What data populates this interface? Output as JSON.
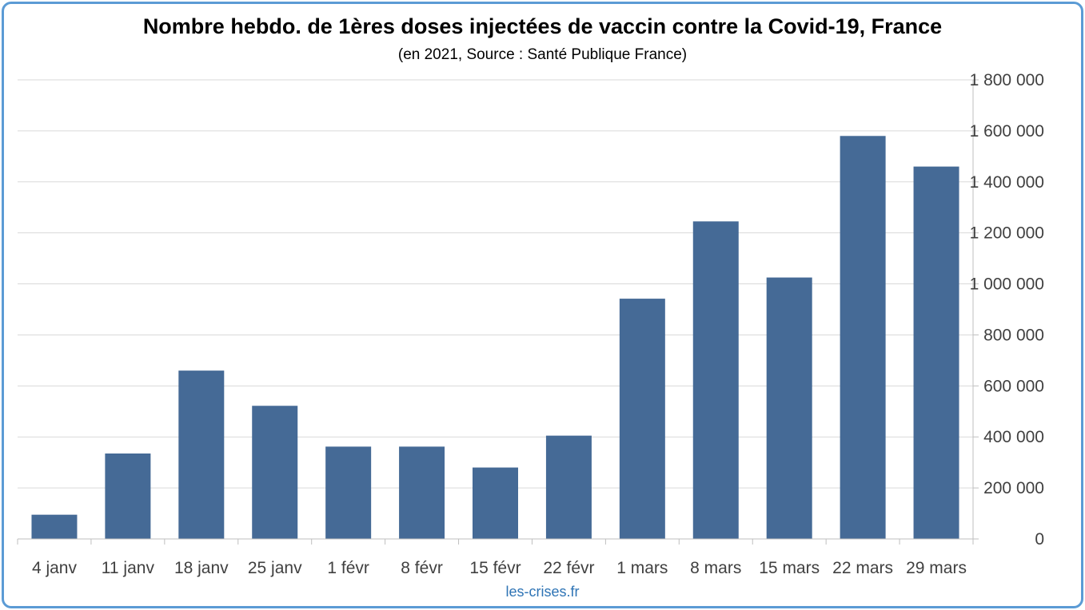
{
  "chart_data": {
    "type": "bar",
    "title": "Nombre hebdo. de 1ères doses injectées de vaccin contre la Covid-19, France",
    "subtitle": "(en 2021, Source : Santé Publique France)",
    "categories": [
      "4 janv",
      "11 janv",
      "18 janv",
      "25 janv",
      "1 févr",
      "8 févr",
      "15 févr",
      "22 févr",
      "1 mars",
      "8 mars",
      "15 mars",
      "22 mars",
      "29 mars"
    ],
    "values": [
      95000,
      335000,
      660000,
      522000,
      362000,
      362000,
      280000,
      405000,
      942000,
      1245000,
      1025000,
      1580000,
      1460000
    ],
    "ylim": [
      0,
      1800000
    ],
    "yticks": [
      0,
      200000,
      400000,
      600000,
      800000,
      1000000,
      1200000,
      1400000,
      1600000,
      1800000
    ],
    "ytick_labels": [
      "0",
      "200 000",
      "400 000",
      "600 000",
      "800 000",
      "1 000 000",
      "1 200 000",
      "1 400 000",
      "1 600 000",
      "1 800 000"
    ],
    "y_axis_side": "right",
    "grid": true,
    "bar_color": "#456a96",
    "xlabel": "",
    "ylabel": ""
  },
  "footer": {
    "source_text": "les-crises.fr"
  },
  "colors": {
    "frame_border": "#5b9bd5",
    "grid": "#d9d9d9",
    "axis": "#bfbfbf",
    "source_link": "#2e74b5"
  }
}
